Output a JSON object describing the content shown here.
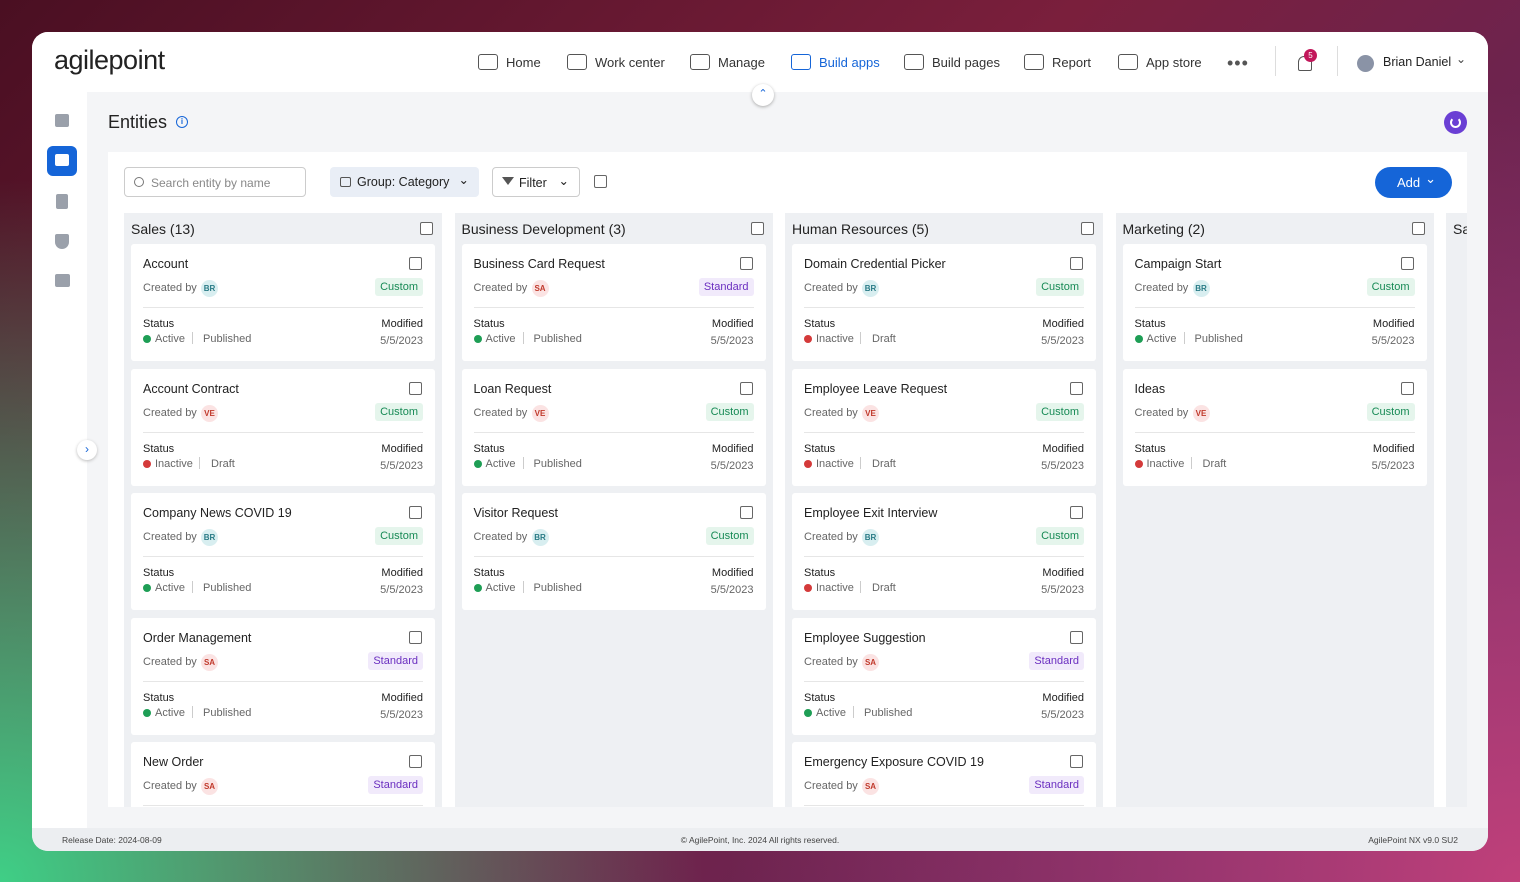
{
  "header": {
    "logo": "agilepoint",
    "nav": [
      "Home",
      "Work center",
      "Manage",
      "Build apps",
      "Build pages",
      "Report",
      "App store"
    ],
    "active_nav": "Build apps",
    "notifications": "5",
    "user": "Brian Daniel"
  },
  "page": {
    "title": "Entities"
  },
  "toolbar": {
    "search_placeholder": "Search entity by name",
    "group": "Group: Category",
    "filter": "Filter",
    "add": "Add"
  },
  "labels": {
    "created_by": "Created by",
    "status": "Status",
    "modified": "Modified"
  },
  "columns": [
    {
      "title": "Sales (13)",
      "cards": [
        {
          "name": "Account",
          "creator": "BR",
          "kind": "Custom",
          "state": "Active",
          "publish": "Published",
          "date": "5/5/2023"
        },
        {
          "name": "Account Contract",
          "creator": "VE",
          "kind": "Custom",
          "state": "Inactive",
          "publish": "Draft",
          "date": "5/5/2023"
        },
        {
          "name": "Company News COVID 19",
          "creator": "BR",
          "kind": "Custom",
          "state": "Active",
          "publish": "Published",
          "date": "5/5/2023"
        },
        {
          "name": "Order Management",
          "creator": "SA",
          "kind": "Standard",
          "state": "Active",
          "publish": "Published",
          "date": "5/5/2023"
        },
        {
          "name": "New Order",
          "creator": "SA",
          "kind": "Standard"
        }
      ]
    },
    {
      "title": "Business Development (3)",
      "cards": [
        {
          "name": "Business Card Request",
          "creator": "SA",
          "kind": "Standard",
          "state": "Active",
          "publish": "Published",
          "date": "5/5/2023"
        },
        {
          "name": "Loan Request",
          "creator": "VE",
          "kind": "Custom",
          "state": "Active",
          "publish": "Published",
          "date": "5/5/2023"
        },
        {
          "name": "Visitor Request",
          "creator": "BR",
          "kind": "Custom",
          "state": "Active",
          "publish": "Published",
          "date": "5/5/2023"
        }
      ]
    },
    {
      "title": "Human Resources (5)",
      "cards": [
        {
          "name": "Domain Credential Picker",
          "creator": "BR",
          "kind": "Custom",
          "state": "Inactive",
          "publish": "Draft",
          "date": "5/5/2023"
        },
        {
          "name": "Employee Leave Request",
          "creator": "VE",
          "kind": "Custom",
          "state": "Inactive",
          "publish": "Draft",
          "date": "5/5/2023"
        },
        {
          "name": "Employee Exit Interview",
          "creator": "BR",
          "kind": "Custom",
          "state": "Inactive",
          "publish": "Draft",
          "date": "5/5/2023"
        },
        {
          "name": "Employee Suggestion",
          "creator": "SA",
          "kind": "Standard",
          "state": "Active",
          "publish": "Published",
          "date": "5/5/2023"
        },
        {
          "name": "Emergency Exposure COVID 19",
          "creator": "SA",
          "kind": "Standard"
        }
      ]
    },
    {
      "title": "Marketing (2)",
      "cards": [
        {
          "name": "Campaign Start",
          "creator": "BR",
          "kind": "Custom",
          "state": "Active",
          "publish": "Published",
          "date": "5/5/2023"
        },
        {
          "name": "Ideas",
          "creator": "VE",
          "kind": "Custom",
          "state": "Inactive",
          "publish": "Draft",
          "date": "5/5/2023"
        }
      ]
    },
    {
      "title": "Sa",
      "cards": []
    }
  ],
  "footer": {
    "release": "Release Date: 2024-08-09",
    "copyright": "© AgilePoint, Inc. 2024 All rights reserved.",
    "version": "AgilePoint NX v9.0 SU2"
  }
}
